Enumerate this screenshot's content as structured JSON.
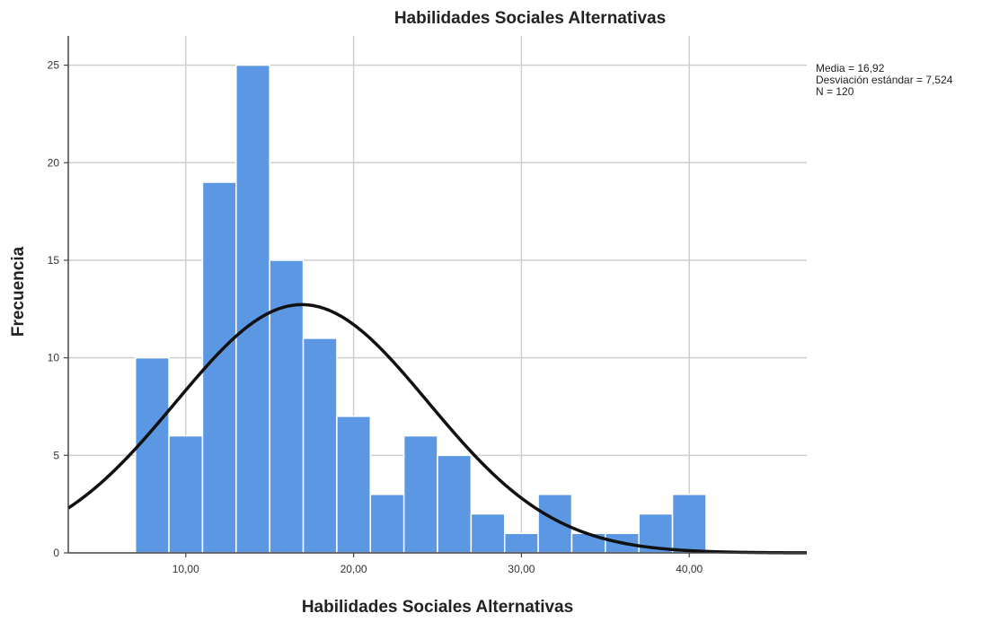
{
  "chart_data": {
    "type": "bar",
    "title": "Habilidades Sociales Alternativas",
    "xlabel": "Habilidades Sociales Alternativas",
    "ylabel": "Frecuencia",
    "bin_edges": [
      7,
      9,
      11,
      13,
      15,
      17,
      19,
      21,
      23,
      25,
      27,
      29,
      31,
      33,
      35,
      37,
      39,
      41
    ],
    "values": [
      10,
      6,
      19,
      25,
      15,
      11,
      7,
      3,
      6,
      5,
      2,
      1,
      3,
      1,
      1,
      2,
      3
    ],
    "xlim": [
      3,
      47
    ],
    "ylim": [
      0,
      26.5
    ],
    "x_ticks": [
      {
        "value": 10,
        "label": "10,00"
      },
      {
        "value": 20,
        "label": "20,00"
      },
      {
        "value": 30,
        "label": "30,00"
      },
      {
        "value": 40,
        "label": "40,00"
      }
    ],
    "y_ticks": [
      {
        "value": 0,
        "label": "0"
      },
      {
        "value": 5,
        "label": "5"
      },
      {
        "value": 10,
        "label": "10"
      },
      {
        "value": 15,
        "label": "15"
      },
      {
        "value": 20,
        "label": "20"
      },
      {
        "value": 25,
        "label": "25"
      }
    ],
    "normal_curve": {
      "mean": 16.92,
      "sd": 7.524,
      "n": 120
    },
    "grid": true,
    "legend": "top-right",
    "stats_lines": [
      "Media = 16,92",
      "Desviación estándar = 7,524",
      "N = 120"
    ],
    "colors": {
      "bar": "#5b97e3",
      "curve": "#111111",
      "grid": "#cfcfcf"
    }
  }
}
